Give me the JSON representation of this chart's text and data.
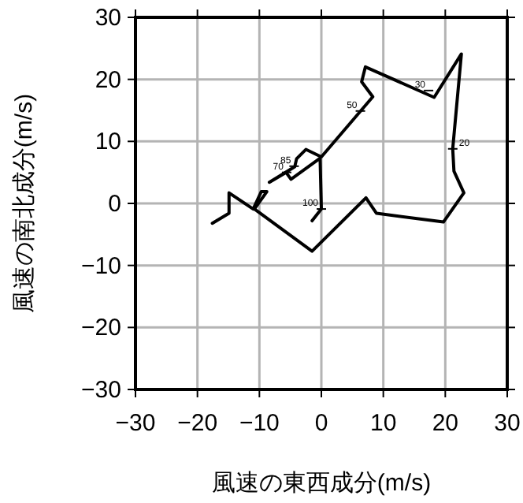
{
  "chart_data": {
    "type": "line",
    "xlabel": "風速の東西成分(m/s)",
    "ylabel": "風速の南北成分(m/s)",
    "xlim": [
      -30,
      30
    ],
    "ylim": [
      -30,
      30
    ],
    "xticks": [
      {
        "value": -30,
        "label": "−30"
      },
      {
        "value": -20,
        "label": "−20"
      },
      {
        "value": -10,
        "label": "−10"
      },
      0,
      10,
      20,
      30
    ],
    "yticks": [
      {
        "value": -30,
        "label": "−30"
      },
      {
        "value": -20,
        "label": "−20"
      },
      {
        "value": -10,
        "label": "−10"
      },
      0,
      10,
      20,
      30
    ],
    "grid": true,
    "marker": "none",
    "line_style": "solid",
    "series": [
      {
        "color": "#000000",
        "x": [
          -17.6,
          -14.9,
          -14.9,
          -11.0,
          -9.7,
          -8.8,
          -10.8,
          -1.5,
          7.2,
          8.9,
          19.7,
          23.0,
          21.4,
          21.2,
          22.6,
          18.2,
          7.1,
          6.5,
          8.3,
          0.0,
          -2.5,
          -4.0,
          -4.3,
          -8.4,
          -5.7,
          -4.9,
          -0.2,
          0.0,
          -1.5
        ],
        "values": [
          -3.2,
          -1.6,
          1.7,
          -0.9,
          1.9,
          1.9,
          -0.9,
          -7.7,
          0.9,
          -1.6,
          -3.0,
          1.7,
          5.2,
          8.8,
          24.1,
          17.1,
          22.0,
          19.6,
          17.2,
          7.5,
          8.7,
          7.2,
          5.9,
          3.4,
          5.0,
          3.9,
          7.3,
          -0.9,
          -2.8
        ]
      }
    ],
    "annotations": [
      {
        "text": "100",
        "x": 0.0,
        "y": -0.9
      },
      {
        "text": "85",
        "x": -4.4,
        "y": 6.0
      },
      {
        "text": "70",
        "x": -5.6,
        "y": 5.0
      },
      {
        "text": "50",
        "x": 6.3,
        "y": 14.9
      },
      {
        "text": "30",
        "x": 17.3,
        "y": 18.2
      },
      {
        "text": "20",
        "x": 21.2,
        "y": 8.8
      }
    ]
  }
}
